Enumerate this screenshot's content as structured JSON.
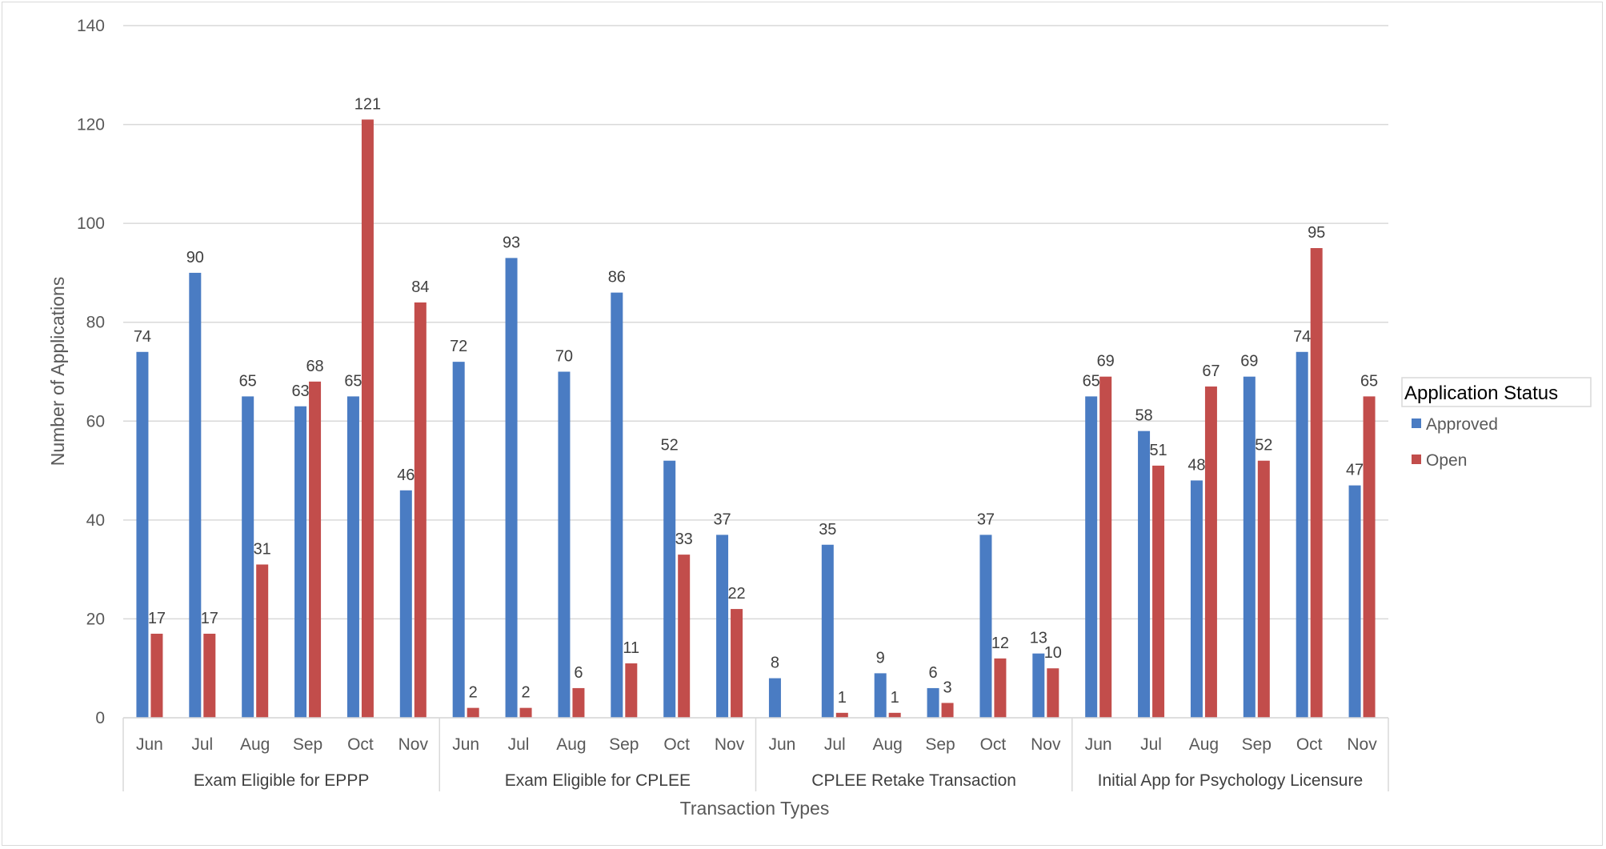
{
  "chart_data": {
    "type": "bar",
    "xlabel": "Transaction Types",
    "ylabel": "Number of Applications",
    "ylim": [
      0,
      140
    ],
    "yticks": [
      0,
      20,
      40,
      60,
      80,
      100,
      120,
      140
    ],
    "grid": true,
    "legend": {
      "title": "Application Status",
      "placement": "right",
      "entries": [
        "Approved",
        "Open"
      ]
    },
    "colors": {
      "Approved": "#4a7cc3",
      "Open": "#c24d4b"
    },
    "groups": [
      {
        "name": "Exam Eligible for EPPP",
        "categories": [
          "Jun",
          "Jul",
          "Aug",
          "Sep",
          "Oct",
          "Nov"
        ],
        "series": [
          {
            "name": "Approved",
            "values": [
              74,
              90,
              65,
              63,
              65,
              46
            ]
          },
          {
            "name": "Open",
            "values": [
              17,
              17,
              31,
              68,
              121,
              84
            ]
          }
        ]
      },
      {
        "name": "Exam Eligible for CPLEE",
        "categories": [
          "Jun",
          "Jul",
          "Aug",
          "Sep",
          "Oct",
          "Nov"
        ],
        "series": [
          {
            "name": "Approved",
            "values": [
              72,
              93,
              70,
              86,
              52,
              37
            ]
          },
          {
            "name": "Open",
            "values": [
              2,
              2,
              6,
              11,
              33,
              22
            ]
          }
        ]
      },
      {
        "name": "CPLEE Retake Transaction",
        "categories": [
          "Jun",
          "Jul",
          "Aug",
          "Sep",
          "Oct",
          "Nov"
        ],
        "series": [
          {
            "name": "Approved",
            "values": [
              8,
              35,
              9,
              6,
              37,
              13
            ]
          },
          {
            "name": "Open",
            "values": [
              null,
              1,
              1,
              3,
              12,
              10
            ]
          }
        ]
      },
      {
        "name": "Initial App for Psychology Licensure",
        "categories": [
          "Jun",
          "Jul",
          "Aug",
          "Sep",
          "Oct",
          "Nov"
        ],
        "series": [
          {
            "name": "Approved",
            "values": [
              65,
              58,
              48,
              69,
              74,
              47
            ]
          },
          {
            "name": "Open",
            "values": [
              69,
              51,
              67,
              52,
              95,
              65
            ]
          }
        ]
      }
    ]
  }
}
